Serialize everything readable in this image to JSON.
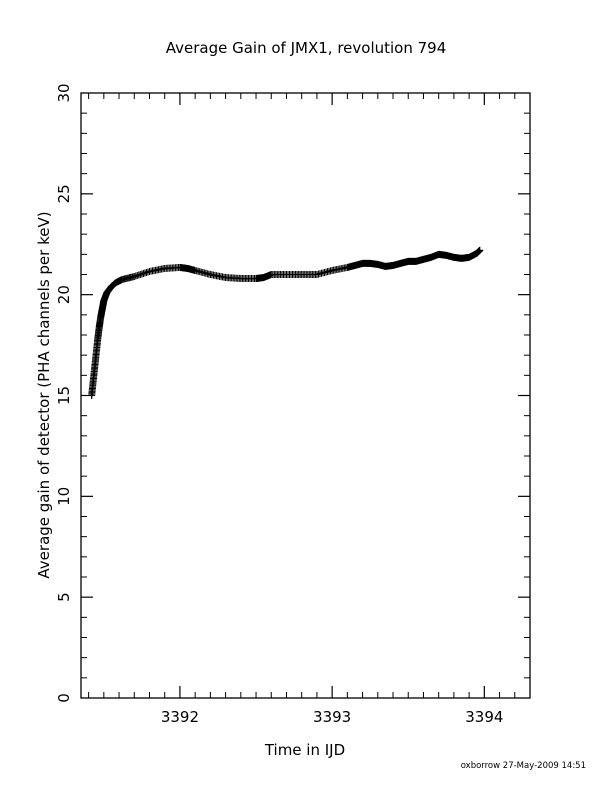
{
  "chart_data": {
    "type": "scatter",
    "title": "Average Gain of JMX1, revolution 794",
    "xlabel": "Time in IJD",
    "ylabel": "Average gain of detector (PHA channels per keV)",
    "xlim": [
      3391.35,
      3394.3
    ],
    "ylim": [
      0,
      30
    ],
    "x_ticks": [
      3392,
      3393,
      3394
    ],
    "y_ticks": [
      0,
      5,
      10,
      15,
      20,
      25,
      30
    ],
    "x_tick_labels": [
      "3392",
      "3393",
      "3394"
    ],
    "y_tick_labels": [
      "0",
      "5",
      "10",
      "15",
      "20",
      "25",
      "30"
    ],
    "marker": "+",
    "grid": false,
    "series": [
      {
        "x": [
          3391.42,
          3391.43,
          3391.44,
          3391.45,
          3391.46,
          3391.47,
          3391.48,
          3391.49,
          3391.5,
          3391.52,
          3391.55,
          3391.58,
          3391.62,
          3391.7,
          3391.8,
          3391.9,
          3392.0,
          3392.05,
          3392.1,
          3392.2,
          3392.3,
          3392.4,
          3392.5,
          3392.55,
          3392.6,
          3392.7,
          3392.8,
          3392.9,
          3393.0,
          3393.1,
          3393.15,
          3393.2,
          3393.25,
          3393.3,
          3393.35,
          3393.4,
          3393.45,
          3393.5,
          3393.55,
          3393.6,
          3393.65,
          3393.7,
          3393.75,
          3393.8,
          3393.85,
          3393.9,
          3393.95,
          3393.97
        ],
        "y": [
          15.0,
          15.7,
          16.4,
          17.1,
          17.8,
          18.4,
          18.9,
          19.3,
          19.7,
          20.1,
          20.4,
          20.6,
          20.75,
          20.9,
          21.15,
          21.3,
          21.35,
          21.3,
          21.2,
          21.0,
          20.85,
          20.8,
          20.8,
          20.85,
          21.0,
          21.0,
          21.0,
          21.0,
          21.2,
          21.35,
          21.45,
          21.55,
          21.55,
          21.5,
          21.4,
          21.45,
          21.55,
          21.65,
          21.65,
          21.75,
          21.85,
          22.0,
          21.95,
          21.85,
          21.8,
          21.85,
          22.05,
          22.2
        ]
      }
    ]
  },
  "footer": {
    "stamp": "oxborrow 27-May-2009 14:51"
  }
}
